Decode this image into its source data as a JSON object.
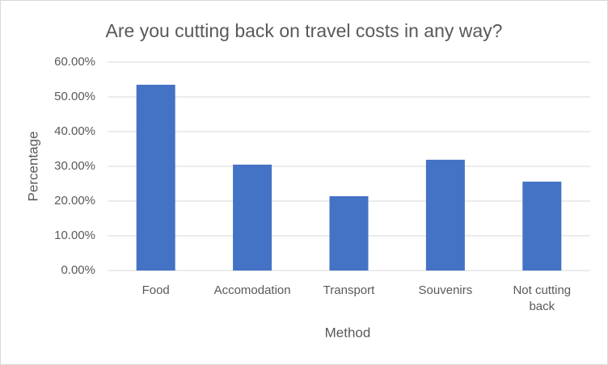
{
  "chart_data": {
    "type": "bar",
    "title": "Are you cutting back on travel costs in any way?",
    "categories": [
      "Food",
      "Accomodation",
      "Transport",
      "Souvenirs",
      "Not cutting back"
    ],
    "values": [
      53.5,
      30.5,
      21.4,
      31.9,
      25.6
    ],
    "color": "#4472c4",
    "x_label": "Method",
    "y_label": "Percentage",
    "ylim": [
      0,
      60
    ],
    "yticks": [
      {
        "value": 0,
        "label": "0.00%"
      },
      {
        "value": 10,
        "label": "10.00%"
      },
      {
        "value": 20,
        "label": "20.00%"
      },
      {
        "value": 30,
        "label": "30.00%"
      },
      {
        "value": 40,
        "label": "40.00%"
      },
      {
        "value": 50,
        "label": "50.00%"
      },
      {
        "value": 60,
        "label": "60.00%"
      }
    ],
    "grid": true
  }
}
